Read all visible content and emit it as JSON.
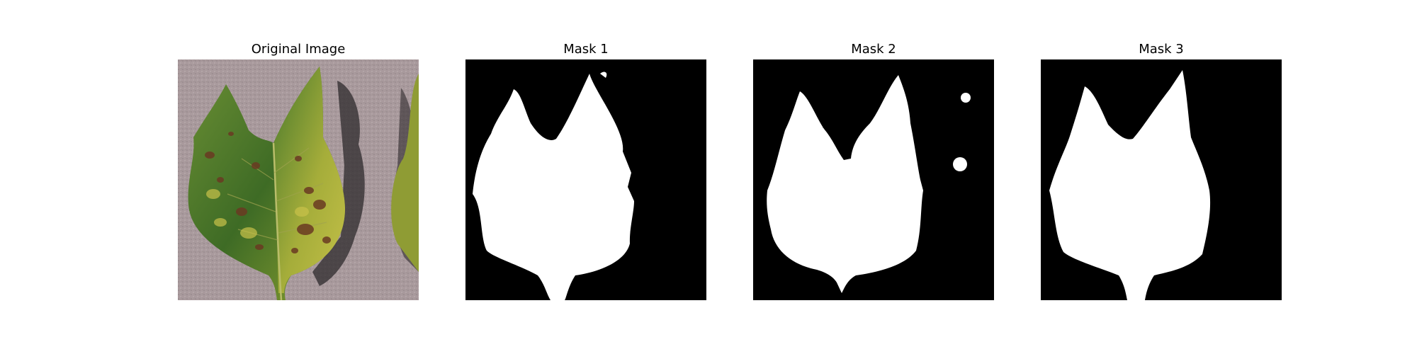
{
  "figure": {
    "panels": [
      {
        "title": "Original Image"
      },
      {
        "title": "Mask 1"
      },
      {
        "title": "Mask 2"
      },
      {
        "title": "Mask 3"
      }
    ]
  },
  "colors": {
    "background": "#ffffff",
    "mask_fg": "#ffffff",
    "mask_bg": "#000000",
    "leaf_green": "#4f7a2a",
    "leaf_yellow": "#b6b338",
    "blight_spot": "#6a3a22",
    "ground": "#a99a9d"
  },
  "icons": {
    "original": "leaf-photo",
    "masks": "binary-leaf-mask"
  }
}
